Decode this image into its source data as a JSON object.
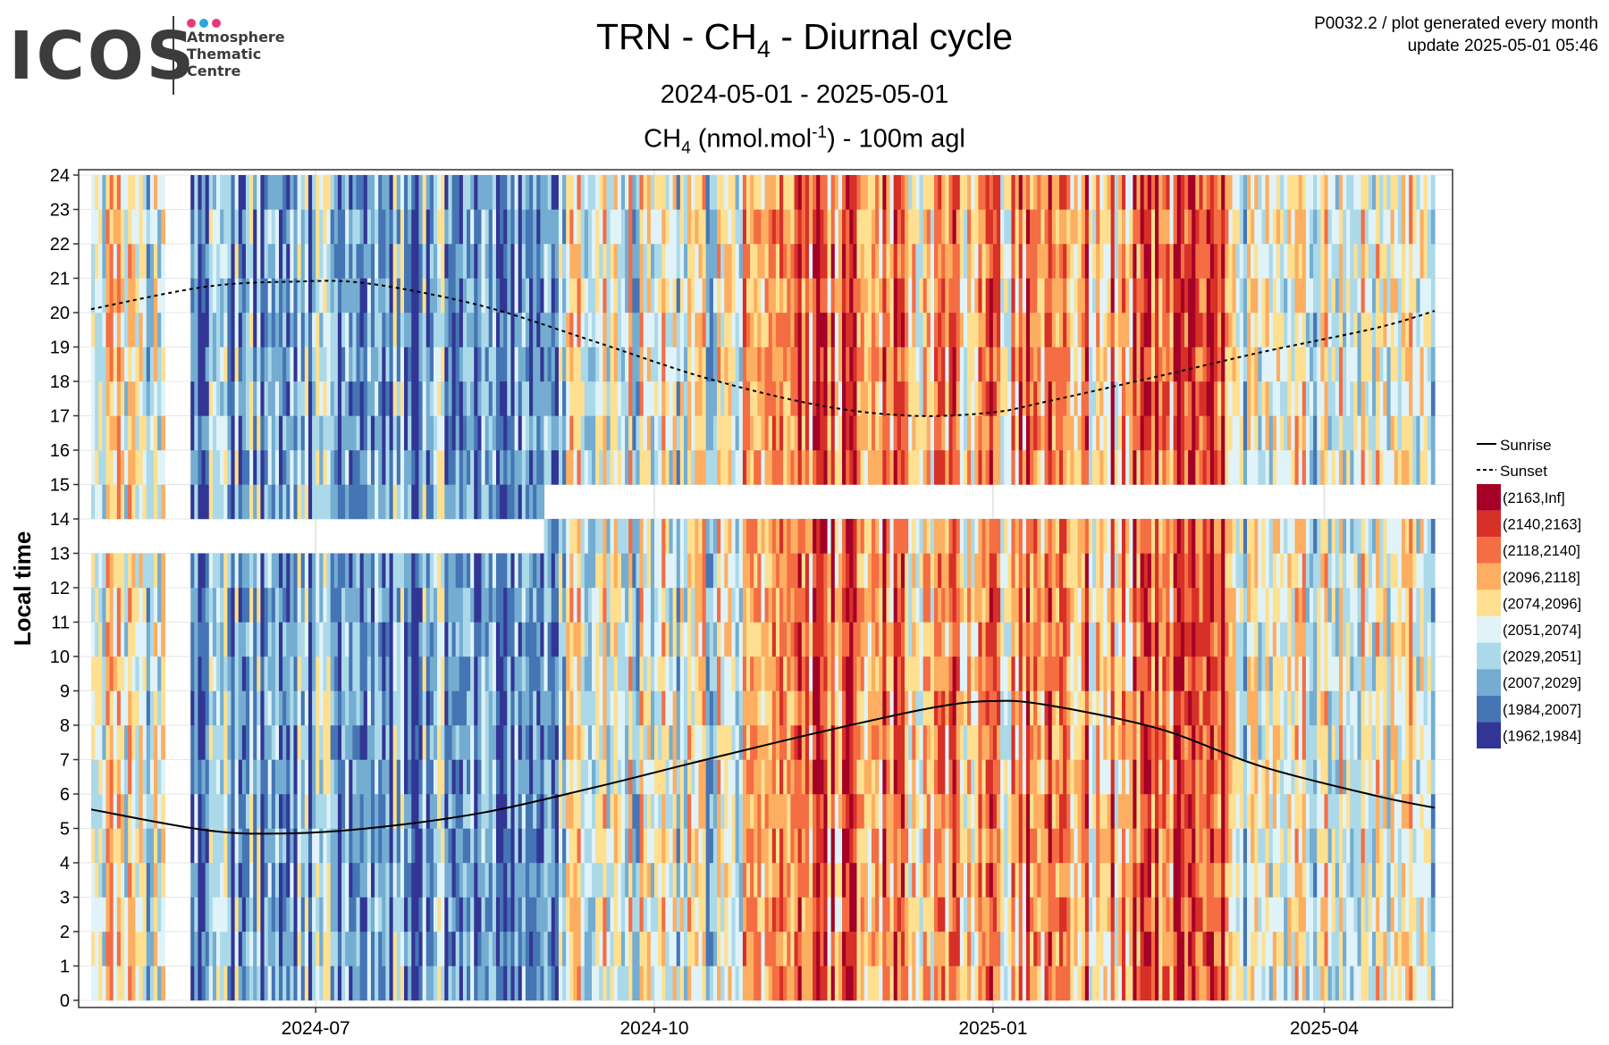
{
  "logo": {
    "word": "ICOS",
    "dot_colors": [
      "#e8397d",
      "#2ba6de",
      "#e8397d"
    ],
    "lines": [
      "Atmosphere",
      "Thematic",
      "Centre"
    ]
  },
  "header": {
    "title_pre": "TRN - CH",
    "title_sub": "4",
    "title_post": " - Diurnal cycle",
    "subtitle": "2024-05-01 - 2025-05-01",
    "variable_pre": "CH",
    "variable_sub": "4",
    "variable_mid": " (nmol.mol",
    "variable_sup": "-1",
    "variable_post": ") - 100m agl"
  },
  "meta": {
    "line1": "P0032.2 / plot generated every month",
    "line2": "update  2025-05-01 05:46"
  },
  "chart_data": {
    "type": "heatmap",
    "title": "TRN - CH4 - Diurnal cycle",
    "subtitle": "2024-05-01 - 2025-05-01",
    "ylabel": "Local time",
    "x_range": [
      "2024-05-01",
      "2025-05-01"
    ],
    "ylim": [
      0,
      24
    ],
    "x_ticks": [
      "2024-07",
      "2024-10",
      "2025-01",
      "2025-04"
    ],
    "y_ticks": [
      0,
      1,
      2,
      3,
      4,
      5,
      6,
      7,
      8,
      9,
      10,
      11,
      12,
      13,
      14,
      15,
      16,
      17,
      18,
      19,
      20,
      21,
      22,
      23,
      24
    ],
    "grid": true,
    "legend_position": "right",
    "lines": [
      {
        "name": "Sunrise",
        "style": "solid",
        "points": [
          [
            "2024-05-01",
            5.55
          ],
          [
            "2024-06-01",
            4.95
          ],
          [
            "2024-06-21",
            4.85
          ],
          [
            "2024-07-15",
            5.0
          ],
          [
            "2024-08-15",
            5.45
          ],
          [
            "2024-09-15",
            6.2
          ],
          [
            "2024-10-15",
            7.0
          ],
          [
            "2024-11-15",
            7.8
          ],
          [
            "2024-12-15",
            8.5
          ],
          [
            "2024-12-31",
            8.7
          ],
          [
            "2025-01-15",
            8.6
          ],
          [
            "2025-02-15",
            7.9
          ],
          [
            "2025-03-15",
            6.8
          ],
          [
            "2025-04-15",
            5.95
          ],
          [
            "2025-05-01",
            5.6
          ]
        ]
      },
      {
        "name": "Sunset",
        "style": "dashed",
        "points": [
          [
            "2024-05-01",
            20.1
          ],
          [
            "2024-06-01",
            20.75
          ],
          [
            "2024-06-25",
            20.9
          ],
          [
            "2024-07-15",
            20.85
          ],
          [
            "2024-08-15",
            20.2
          ],
          [
            "2024-09-15",
            19.15
          ],
          [
            "2024-10-15",
            18.1
          ],
          [
            "2024-11-15",
            17.3
          ],
          [
            "2024-12-10",
            17.0
          ],
          [
            "2025-01-01",
            17.1
          ],
          [
            "2025-01-15",
            17.4
          ],
          [
            "2025-02-15",
            18.15
          ],
          [
            "2025-03-15",
            18.85
          ],
          [
            "2025-04-15",
            19.55
          ],
          [
            "2025-05-01",
            20.05
          ]
        ]
      }
    ],
    "color_bins": [
      {
        "label": "(2163,Inf]",
        "color": "#a50026"
      },
      {
        "label": "(2140,2163]",
        "color": "#d73027"
      },
      {
        "label": "(2118,2140]",
        "color": "#f46d43"
      },
      {
        "label": "(2096,2118]",
        "color": "#fdae61"
      },
      {
        "label": "(2074,2096]",
        "color": "#fee090"
      },
      {
        "label": "(2051,2074]",
        "color": "#e0f3f8"
      },
      {
        "label": "(2029,2051]",
        "color": "#abd9e9"
      },
      {
        "label": "(2007,2029]",
        "color": "#74add1"
      },
      {
        "label": "(1984,2007]",
        "color": "#4575b4"
      },
      {
        "label": "(1962,1984]",
        "color": "#313695"
      }
    ],
    "missing_hours": [
      {
        "from": "2024-05-01",
        "to": "2024-09-01",
        "hours": [
          13
        ]
      },
      {
        "from": "2024-09-01",
        "to": "2025-05-01",
        "hours": [
          14
        ]
      }
    ],
    "period_mean_bin": [
      {
        "from": "2024-05-01",
        "to": "2024-05-25",
        "bin": "(2051,2074]"
      },
      {
        "from": "2024-05-25",
        "to": "2024-07-10",
        "bin": "(2007,2029]"
      },
      {
        "from": "2024-07-10",
        "to": "2024-09-05",
        "bin": "(2007,2029]"
      },
      {
        "from": "2024-09-05",
        "to": "2024-10-25",
        "bin": "(2051,2074]"
      },
      {
        "from": "2024-10-25",
        "to": "2024-12-01",
        "bin": "(2118,2140]"
      },
      {
        "from": "2024-12-01",
        "to": "2025-01-10",
        "bin": "(2096,2118]"
      },
      {
        "from": "2025-01-10",
        "to": "2025-02-05",
        "bin": "(2096,2118]"
      },
      {
        "from": "2025-02-05",
        "to": "2025-03-05",
        "bin": "(2118,2140]"
      },
      {
        "from": "2025-03-05",
        "to": "2025-05-01",
        "bin": "(2051,2074]"
      }
    ]
  }
}
